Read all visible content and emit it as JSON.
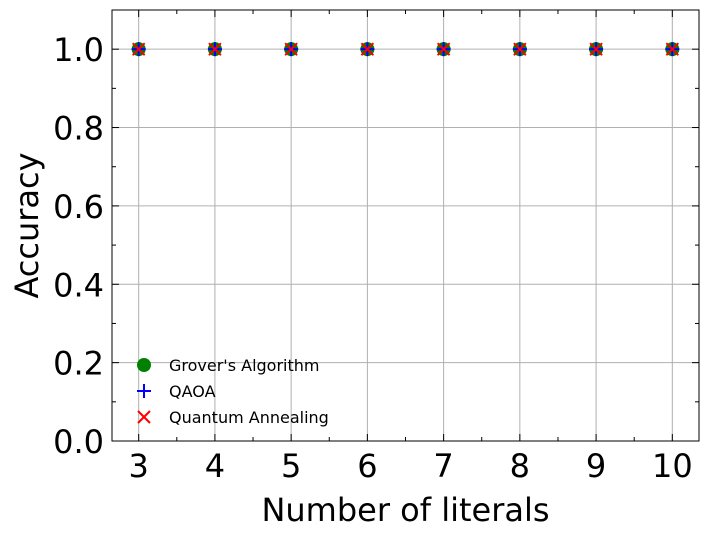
{
  "chart_data": {
    "type": "scatter",
    "title": "",
    "xlabel": "Number of literals",
    "ylabel": "Accuracy",
    "x": [
      3,
      4,
      5,
      6,
      7,
      8,
      9,
      10
    ],
    "xlim": [
      2.65,
      10.35
    ],
    "ylim": [
      0.0,
      1.1
    ],
    "xticks": [
      "3",
      "4",
      "5",
      "6",
      "7",
      "8",
      "9",
      "10"
    ],
    "yticks": [
      "0.0",
      "0.2",
      "0.4",
      "0.6",
      "0.8",
      "1.0"
    ],
    "grid": true,
    "legend_position": "lower-left",
    "series": [
      {
        "name": "Grover's Algorithm",
        "marker": "circle",
        "color": "#008000",
        "values": [
          1.0,
          1.0,
          1.0,
          1.0,
          1.0,
          1.0,
          1.0,
          1.0
        ]
      },
      {
        "name": "QAOA",
        "marker": "plus",
        "color": "#0000ff",
        "values": [
          1.0,
          1.0,
          1.0,
          1.0,
          1.0,
          1.0,
          1.0,
          1.0
        ]
      },
      {
        "name": "Quantum Annealing",
        "marker": "x",
        "color": "#ff0000",
        "values": [
          1.0,
          1.0,
          1.0,
          1.0,
          1.0,
          1.0,
          1.0,
          1.0
        ]
      }
    ]
  }
}
